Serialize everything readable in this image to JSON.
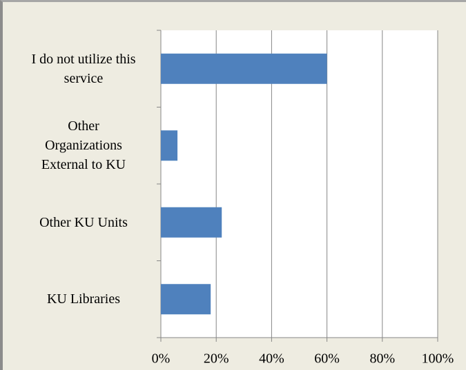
{
  "chart_data": {
    "type": "bar",
    "orientation": "horizontal",
    "categories": [
      "I do not utilize this service",
      "Other Organizations External to KU",
      "Other KU Units",
      "KU Libraries"
    ],
    "values": [
      60,
      6,
      22,
      18
    ],
    "color": "#4f81bd",
    "xlim": [
      0,
      100
    ],
    "xticks": [
      {
        "value": 0,
        "label": "0%"
      },
      {
        "value": 20,
        "label": "20%"
      },
      {
        "value": 40,
        "label": "40%"
      },
      {
        "value": 60,
        "label": "60%"
      },
      {
        "value": 80,
        "label": "80%"
      },
      {
        "value": 100,
        "label": "100%"
      }
    ],
    "grid": true
  }
}
